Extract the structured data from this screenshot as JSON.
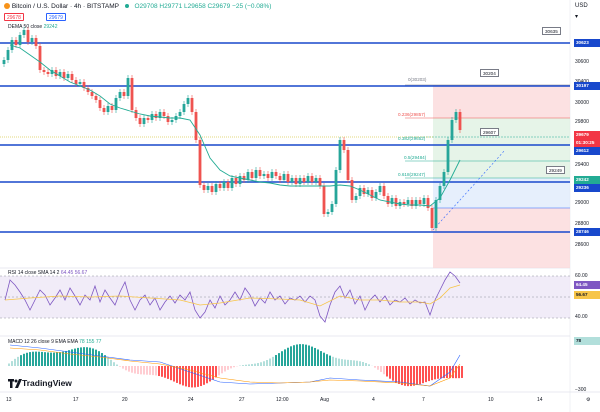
{
  "header": {
    "symbol": "Bitcoin / U.S. Dollar · 4h · BITSTAMP",
    "ohlc": "O29708 H29771 L29658 C29679 −25 (−0.08%)",
    "bid": "29678",
    "ask": "29679",
    "currency": "USD",
    "ma_label": "DEMA 50 close",
    "ma_value": "29242"
  },
  "price_axis": {
    "ticks": [
      "30600",
      "30400",
      "30200",
      "30000",
      "29800",
      "29600",
      "29400",
      "29200",
      "29000",
      "28800",
      "28600"
    ],
    "tags": [
      {
        "label": "30623",
        "color": "#1848cc"
      },
      {
        "label": "30197",
        "color": "#1848cc"
      },
      {
        "label": "29679",
        "color": "#f23645"
      },
      {
        "label": "01:30:25",
        "color": "#f23645"
      },
      {
        "label": "29612",
        "color": "#1848cc"
      },
      {
        "label": "29242",
        "color": "#22ab94"
      },
      {
        "label": "29236",
        "color": "#1848cc"
      },
      {
        "label": "28746",
        "color": "#1848cc"
      }
    ]
  },
  "callouts": [
    "30635",
    "30204",
    "29607",
    "29249"
  ],
  "fib": [
    {
      "label": "0(30203)"
    },
    {
      "label": "0.236(29857)"
    },
    {
      "label": "0.382(29652)"
    },
    {
      "label": "0.5(29484)"
    },
    {
      "label": "0.618(29247)"
    }
  ],
  "rsi": {
    "label": "RSI 14 close SMA 14 2",
    "values": "64.45  56.67",
    "tags": [
      {
        "label": "64.45",
        "color": "#7e57c2"
      },
      {
        "label": "56.67",
        "color": "#f7c548"
      }
    ],
    "ticks": [
      "60.00",
      "40.00"
    ]
  },
  "macd": {
    "label": "MACD 12 26 close 9 EMA EMA",
    "values": "78  155  77",
    "ticks": [
      "−300"
    ],
    "tag": "78"
  },
  "time_axis": {
    "ticks": [
      "13",
      "17",
      "20",
      "24",
      "27",
      "12:00",
      "Aug",
      "4",
      "7",
      "10",
      "14",
      "17"
    ]
  },
  "logo": "TradingView",
  "colors": {
    "up": "#26a69a",
    "down": "#ef5350",
    "level": "#1848cc",
    "rsi": "#7e57c2",
    "ma": "#22ab94"
  }
}
